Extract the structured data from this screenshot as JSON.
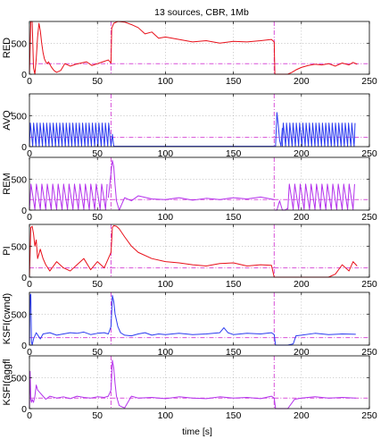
{
  "chart_data": {
    "type": "line",
    "title": "13 sources, CBR, 1Mb",
    "xlabel": "time [s]",
    "xlim": [
      0,
      250
    ],
    "x_ticks": [
      0,
      50,
      100,
      150,
      200,
      250
    ],
    "y_ticks": [
      0,
      500
    ],
    "ylim": [
      0,
      850
    ],
    "grid": true,
    "colors": {
      "red": "#e8101a",
      "blue": "#2b3bf0",
      "purple": "#b432ec",
      "reference": "#d850d8"
    },
    "panels": [
      {
        "ylabel": "RED",
        "color": "#e8101a",
        "reference": {
          "value": 170,
          "breaks": [
            60,
            180
          ]
        },
        "series_x": [
          0,
          1,
          2,
          3,
          4,
          5,
          6,
          7,
          8,
          9,
          10,
          11,
          12,
          13,
          14,
          16,
          18,
          20,
          23,
          26,
          30,
          34,
          38,
          42,
          46,
          50,
          54,
          58,
          60,
          60.5,
          62,
          65,
          70,
          75,
          80,
          85,
          90,
          95,
          100,
          110,
          120,
          130,
          140,
          150,
          160,
          170,
          178,
          180,
          180.5,
          185,
          190,
          193,
          196,
          200,
          205,
          210,
          215,
          220,
          225,
          230,
          235,
          238,
          241
        ],
        "series_y": [
          0,
          850,
          850,
          100,
          0,
          250,
          600,
          820,
          700,
          500,
          350,
          250,
          200,
          170,
          200,
          120,
          60,
          30,
          60,
          170,
          130,
          160,
          180,
          200,
          140,
          170,
          200,
          230,
          180,
          740,
          820,
          850,
          840,
          800,
          750,
          650,
          680,
          580,
          600,
          560,
          520,
          540,
          500,
          530,
          520,
          540,
          560,
          520,
          0,
          0,
          0,
          30,
          70,
          110,
          140,
          160,
          150,
          170,
          130,
          180,
          150,
          190,
          160
        ]
      },
      {
        "ylabel": "AVQ",
        "color": "#2b3bf0",
        "reference": {
          "value": 150,
          "breaks": [
            60,
            180
          ]
        },
        "segments": [
          {
            "type": "osc",
            "start": 0,
            "end": 60,
            "period": 2.4,
            "low": 5,
            "high": 380
          },
          {
            "type": "line",
            "x": [
              60,
              61,
              62,
              180
            ],
            "y": [
              5,
              200,
              5,
              5
            ]
          },
          {
            "type": "line",
            "x": [
              180,
              181,
              182,
              183,
              184,
              185,
              186
            ],
            "y": [
              5,
              5,
              550,
              350,
              100,
              5,
              300
            ]
          },
          {
            "type": "osc",
            "start": 186,
            "end": 240,
            "period": 2.4,
            "low": 5,
            "high": 380
          }
        ]
      },
      {
        "ylabel": "REM",
        "color": "#b432ec",
        "reference": {
          "value": 170,
          "breaks": [
            60,
            180
          ]
        },
        "segments": [
          {
            "type": "osc",
            "start": 0,
            "end": 58,
            "period": 4.0,
            "low": 10,
            "high": 420
          },
          {
            "type": "line",
            "x": [
              58,
              59,
              60,
              61,
              62,
              63,
              64,
              66,
              68,
              70,
              75,
              80,
              90,
              100,
              110,
              120,
              130,
              140,
              150,
              160,
              170,
              180
            ],
            "y": [
              200,
              400,
              600,
              800,
              700,
              400,
              150,
              0,
              100,
              200,
              150,
              230,
              180,
              170,
              200,
              160,
              190,
              170,
              200,
              180,
              210,
              170
            ]
          },
          {
            "type": "line",
            "x": [
              180,
              182,
              184,
              186,
              188,
              190
            ],
            "y": [
              0,
              0,
              150,
              0,
              0,
              30
            ]
          },
          {
            "type": "osc",
            "start": 190,
            "end": 240,
            "period": 4.0,
            "low": 10,
            "high": 420
          }
        ]
      },
      {
        "ylabel": "PI",
        "color": "#e8101a",
        "reference": {
          "value": 150,
          "breaks": [
            60,
            180
          ]
        },
        "series_x": [
          0,
          1,
          2,
          3,
          4,
          5,
          6,
          8,
          10,
          12,
          15,
          20,
          25,
          30,
          35,
          40,
          45,
          50,
          55,
          58,
          60,
          61,
          62,
          64,
          66,
          70,
          75,
          80,
          90,
          100,
          110,
          120,
          130,
          140,
          150,
          160,
          170,
          178,
          180,
          182,
          190,
          200,
          210,
          220,
          225,
          230,
          235,
          238,
          241
        ],
        "series_y": [
          0,
          800,
          820,
          700,
          500,
          600,
          300,
          450,
          300,
          200,
          100,
          250,
          150,
          100,
          200,
          300,
          120,
          250,
          150,
          300,
          400,
          800,
          830,
          820,
          780,
          650,
          500,
          400,
          300,
          250,
          230,
          200,
          180,
          220,
          230,
          180,
          200,
          190,
          0,
          0,
          0,
          0,
          0,
          0,
          50,
          200,
          100,
          250,
          180
        ]
      },
      {
        "ylabel": "KSFI(cwnd)",
        "color": "#2b3bf0",
        "reference": {
          "value": 120,
          "breaks": [
            60,
            180
          ]
        },
        "series_x": [
          0,
          0.5,
          1,
          1.5,
          2,
          3,
          4,
          5,
          8,
          10,
          15,
          20,
          25,
          30,
          35,
          40,
          45,
          50,
          55,
          58,
          60,
          61,
          62,
          63,
          65,
          67,
          70,
          75,
          80,
          85,
          90,
          95,
          100,
          110,
          120,
          130,
          140,
          143,
          146,
          150,
          160,
          170,
          178,
          180,
          181,
          190,
          194,
          196,
          200,
          210,
          220,
          230,
          240
        ],
        "series_y": [
          0,
          800,
          820,
          50,
          0,
          100,
          150,
          200,
          100,
          180,
          200,
          160,
          180,
          200,
          190,
          210,
          170,
          190,
          200,
          180,
          300,
          800,
          700,
          500,
          300,
          200,
          160,
          150,
          180,
          200,
          160,
          180,
          170,
          190,
          170,
          180,
          200,
          280,
          200,
          170,
          190,
          180,
          200,
          170,
          0,
          0,
          20,
          150,
          160,
          190,
          170,
          180,
          175
        ]
      },
      {
        "ylabel": "KSFI(aggfl",
        "color": "#b432ec",
        "reference": {
          "value": 170,
          "breaks": [
            60,
            180
          ]
        },
        "series_x": [
          0,
          0.5,
          1,
          1.5,
          2,
          3,
          4,
          5,
          6,
          8,
          10,
          12,
          15,
          20,
          25,
          30,
          35,
          40,
          45,
          50,
          55,
          58,
          60,
          61,
          62,
          63,
          64,
          66,
          70,
          75,
          80,
          90,
          100,
          110,
          120,
          130,
          140,
          150,
          160,
          170,
          178,
          180,
          181,
          185,
          190,
          195,
          200,
          210,
          220,
          230,
          240
        ],
        "series_y": [
          0,
          600,
          150,
          100,
          150,
          100,
          200,
          380,
          300,
          250,
          200,
          150,
          200,
          170,
          190,
          160,
          200,
          180,
          170,
          190,
          180,
          200,
          300,
          780,
          650,
          400,
          200,
          50,
          10,
          200,
          170,
          180,
          160,
          190,
          170,
          160,
          190,
          170,
          180,
          160,
          200,
          170,
          0,
          0,
          0,
          150,
          170,
          190,
          170,
          180,
          170
        ]
      }
    ]
  }
}
